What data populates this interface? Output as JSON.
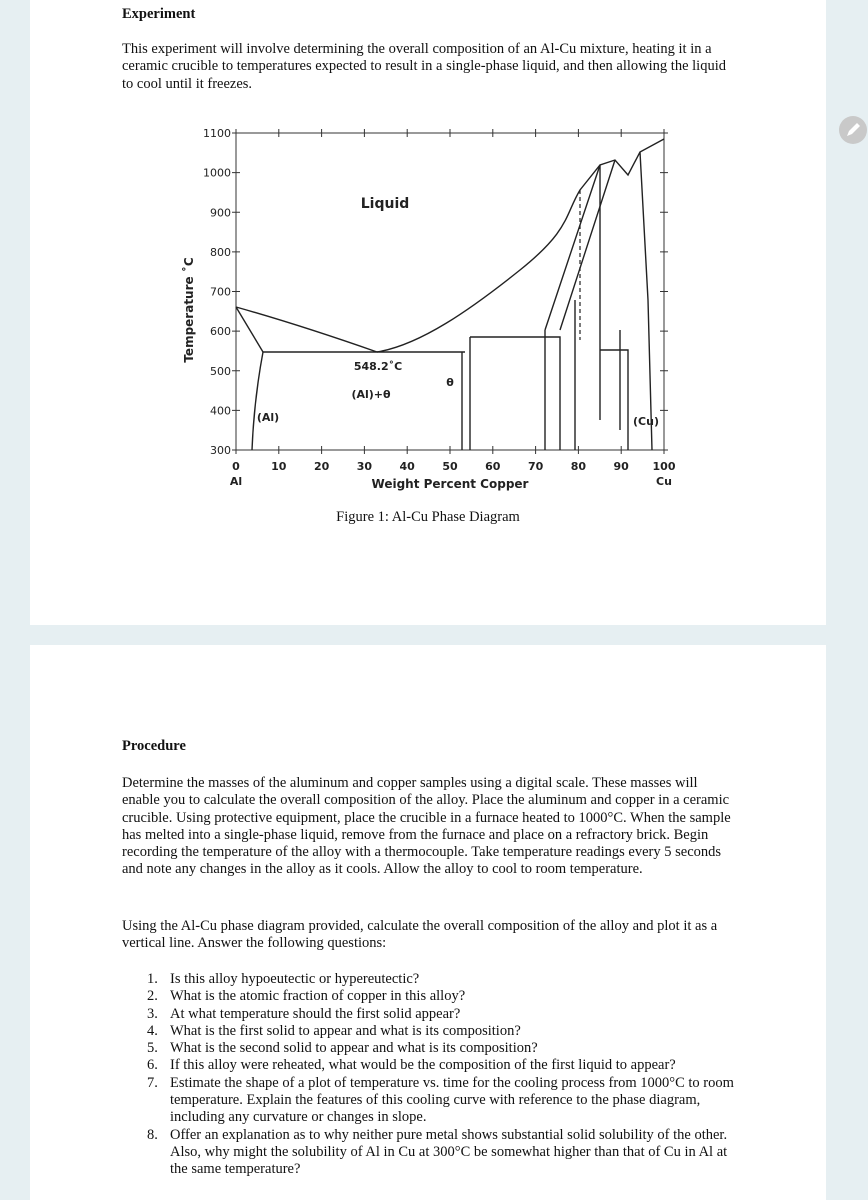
{
  "experiment": {
    "heading": "Experiment",
    "paragraph": "This experiment will involve determining the overall composition of an Al-Cu mixture, heating it in a ceramic crucible to temperatures expected to result in a single-phase liquid, and then allowing the liquid to cool until it freezes."
  },
  "figure": {
    "y_axis_label": "Temperature ˚C",
    "yticks": [
      300,
      400,
      500,
      600,
      700,
      800,
      900,
      1000,
      1100
    ],
    "xticks": [
      0,
      10,
      20,
      30,
      40,
      50,
      60,
      70,
      80,
      90,
      100
    ],
    "x_end_labels": [
      "Al",
      "Cu"
    ],
    "x_axis_label": "Weight Percent Copper",
    "region_labels": [
      "Liquid",
      "548.2˚C",
      "(Al)+θ",
      "θ",
      "(Al)",
      "(Cu)"
    ],
    "caption": "Figure 1: Al-Cu Phase Diagram"
  },
  "procedure": {
    "heading": "Procedure",
    "paragraphs": [
      "Determine the masses of the aluminum and copper samples using a digital scale.  These masses will enable you to calculate the overall composition of the alloy.  Place the aluminum and copper in a ceramic crucible.  Using protective equipment, place the crucible in a furnace heated to 1000°C.  When the sample has melted into a single-phase liquid, remove from the furnace and place on a refractory brick.  Begin recording the temperature of the alloy with a thermocouple.  Take temperature readings every 5 seconds and note any changes in the alloy as it cools.  Allow the alloy to cool to room temperature.",
      "Using the Al-Cu phase diagram provided, calculate the overall composition of the alloy and plot it as a vertical line.  Answer the following questions:"
    ],
    "questions": [
      {
        "number": "1.",
        "text": "Is this alloy hypoeutectic or hypereutectic?"
      },
      {
        "number": "2.",
        "text": "What is the atomic fraction of copper in this alloy?"
      },
      {
        "number": "3.",
        "text": "At what temperature should the first solid appear?"
      },
      {
        "number": "4.",
        "text": "What is the first solid to appear and what is its composition?"
      },
      {
        "number": "5.",
        "text": "What is the second solid to appear and what is its composition?"
      },
      {
        "number": "6.",
        "text": "If this alloy were reheated, what would be the composition of the first liquid to appear?"
      },
      {
        "number": "7.",
        "text": "Estimate the shape of a plot of temperature vs. time for the cooling process from 1000°C to room temperature.  Explain the features of this cooling curve with reference to the phase diagram, including any curvature or changes in slope."
      },
      {
        "number": "8.",
        "text": "Offer an explanation as to why neither pure metal shows substantial solid solubility of the other.  Also, why might the solubility of Al in Cu at 300°C be somewhat higher than that of Cu in Al at the same temperature?"
      }
    ]
  }
}
